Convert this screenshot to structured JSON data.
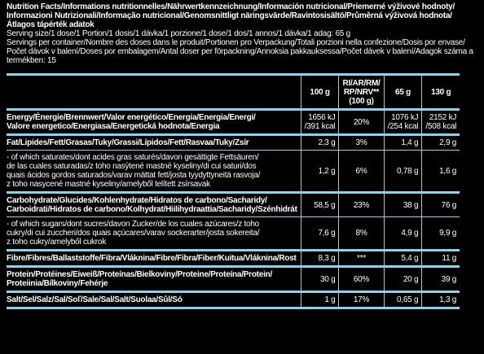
{
  "header": {
    "title_lines": [
      "Nutrition Facts/Informations nutritionnelles/Nährwertkennzeichnung/Información nutricional/Priemerné výživové hodnoty/",
      "Informazioni Nutrizionali/Informação nutricional/Genomsnittligt näringsvärde/Ravintosisältö/Průměrná výživová hodnota/",
      "Átlagos tápérték adatok"
    ],
    "serving_size": "Serving size/1 dose/1 Portion/1 dosis/1 dávka/1 porzione/1 dose/1 dos/1 annos/1 dávka/1 adag: 65 g",
    "servings_lines": [
      "Servings per container/Nombre des doses dans le produit/Portionen pro Verpackung/Totali porzioni nella confezione/Dosis por envase/",
      "Počet dávok v balení/Doses por embalagem/Antal doser per förpackning/Annoksia pakkauksessa/Počet dávek v balení/Adagok száma a",
      "termékben: 15"
    ]
  },
  "table": {
    "columns": [
      [
        "100 g"
      ],
      [
        "RI/AR/RM/",
        "RP/NRV**",
        "(100 g)"
      ],
      [
        "65 g"
      ],
      [
        "130 g"
      ]
    ],
    "rows": [
      {
        "name": [
          "Energy/Énergie/Brennwert/Valor energético/Energia/Energia/Energi/",
          "Valore energetico/Energiasa/Energetická hodnota/Energia"
        ],
        "cells": [
          [
            "1656 kJ",
            "/391 kcal"
          ],
          [
            "20%"
          ],
          [
            "1076 kJ",
            "/254 kcal"
          ],
          [
            "2152 kJ",
            "/508 kcal"
          ]
        ]
      },
      {
        "name": [
          "Fat/Lipides/Fett/Grasas/Tuky/Grassi/Lípidos/Fett/Rasvaa/Tuky/Zsír"
        ],
        "cells": [
          [
            "2,3 g"
          ],
          [
            "3%"
          ],
          [
            "1,4 g"
          ],
          [
            "2,9 g"
          ]
        ]
      },
      {
        "name": [
          "- of which saturates/dont acides gras saturés/davon gesättigte Fettsäuren/",
          "de las cuales saturadas/z toho nasýtené mastné kyseliny/di cui saturi/dos",
          "quais ácidos gordos saturados/varav mättat fett/josta tyydyttyneitä rasvoja/",
          "z toho nasycené mastné kyseliny/amelyből telített zsírsavak"
        ],
        "cells": [
          [
            "1,2 g"
          ],
          [
            "6%"
          ],
          [
            "0,78 g"
          ],
          [
            "1,6 g"
          ]
        ]
      },
      {
        "name": [
          "Carbohydrate/Glucides/Kohlenhydrate/Hidratos de carbono/Sacharidy/",
          "Carboidrati/Hidratos de carbono/Kolhydrat/Hiilihydraattia/Sacharidy/Szénhidrát"
        ],
        "cells": [
          [
            "58,5 g"
          ],
          [
            "23%"
          ],
          [
            "38 g"
          ],
          [
            "76 g"
          ]
        ]
      },
      {
        "name": [
          "- of which sugars/dont sucres/davon Zucker/de los cuales azúcares/z toho",
          "cukry/di cui zuccheri/dos quais açúcares/varav sockerarter/josta sokereita/",
          "z toho cukry/amelyből cukrok"
        ],
        "cells": [
          [
            "7,6 g"
          ],
          [
            "8%"
          ],
          [
            "4,9 g"
          ],
          [
            "9,9 g"
          ]
        ]
      },
      {
        "name": [
          "Fibre/Fibres/Ballaststoffe/Fibra/Vláknina/Fibre/Fibra/Fiber/Kuitua/Vláknina/Rost"
        ],
        "cells": [
          [
            "8,3 g"
          ],
          [
            "***"
          ],
          [
            "5,4 g"
          ],
          [
            "11 g"
          ]
        ]
      },
      {
        "name": [
          "Protein/Protéines/Eiweiß/Proteínas/Bielkoviny/Proteine/Proteína/Protein/",
          "Proteiinia/Bílkoviny/Fehérje"
        ],
        "cells": [
          [
            "30 g"
          ],
          [
            "60%"
          ],
          [
            "20 g"
          ],
          [
            "39 g"
          ]
        ]
      },
      {
        "name": [
          "Salt/Sel/Salz/Sal/Soľ/Sale/Sal/Salt/Suolaa/Sůl/Só"
        ],
        "cells": [
          [
            "1 g"
          ],
          [
            "17%"
          ],
          [
            "0,65 g"
          ],
          [
            "1,3 g"
          ]
        ]
      }
    ]
  }
}
